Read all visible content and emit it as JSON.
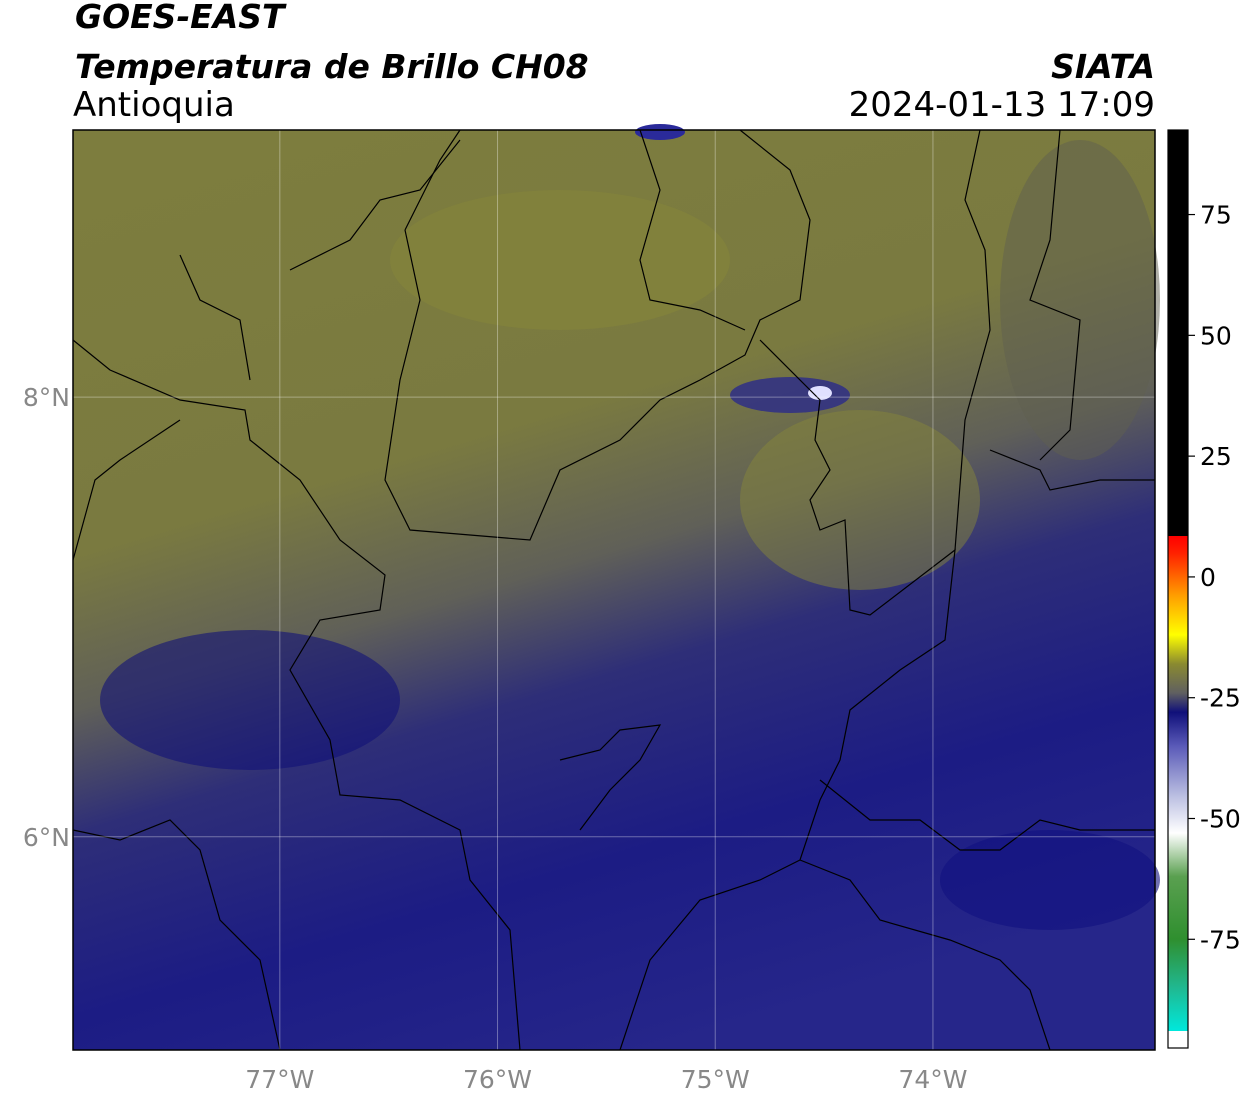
{
  "header": {
    "title": "GOES-EAST",
    "subtitle": "Temperatura de Brillo CH08",
    "region": "Antioquia",
    "source": "SIATA",
    "datetime": "2024-01-13 17:09"
  },
  "map": {
    "lon_range": [
      -77.95,
      -72.98
    ],
    "lat_range": [
      5.03,
      9.215
    ],
    "lon_ticks": [
      {
        "value": -77,
        "label": "77°W"
      },
      {
        "value": -76,
        "label": "76°W"
      },
      {
        "value": -75,
        "label": "75°W"
      },
      {
        "value": -74,
        "label": "74°W"
      }
    ],
    "lat_ticks": [
      {
        "value": 8,
        "label": "8°N"
      },
      {
        "value": 6,
        "label": "6°N"
      }
    ]
  },
  "colorbar": {
    "range": [
      -97.5,
      92.5
    ],
    "ticks": [
      75,
      50,
      25,
      0,
      -25,
      -50,
      -75
    ],
    "colormap": [
      {
        "value": -97.5,
        "color": "#ffffff"
      },
      {
        "value": -94,
        "color": "#ffffff"
      },
      {
        "value": -94,
        "color": "#00e8dc"
      },
      {
        "value": -85,
        "color": "#20b890"
      },
      {
        "value": -75,
        "color": "#2f8f2f"
      },
      {
        "value": -62,
        "color": "#5aa050"
      },
      {
        "value": -53,
        "color": "#ffffff"
      },
      {
        "value": -45,
        "color": "#b8bce0"
      },
      {
        "value": -35,
        "color": "#5a5ab8"
      },
      {
        "value": -28,
        "color": "#10107a"
      },
      {
        "value": -24,
        "color": "#606060"
      },
      {
        "value": -18,
        "color": "#8a8a30"
      },
      {
        "value": -12,
        "color": "#ffff00"
      },
      {
        "value": -4,
        "color": "#ffa000"
      },
      {
        "value": 5,
        "color": "#ff2000"
      },
      {
        "value": 8.5,
        "color": "#ff0000"
      },
      {
        "value": 8.5,
        "color": "#000000"
      },
      {
        "value": 92.5,
        "color": "#000000"
      }
    ]
  }
}
